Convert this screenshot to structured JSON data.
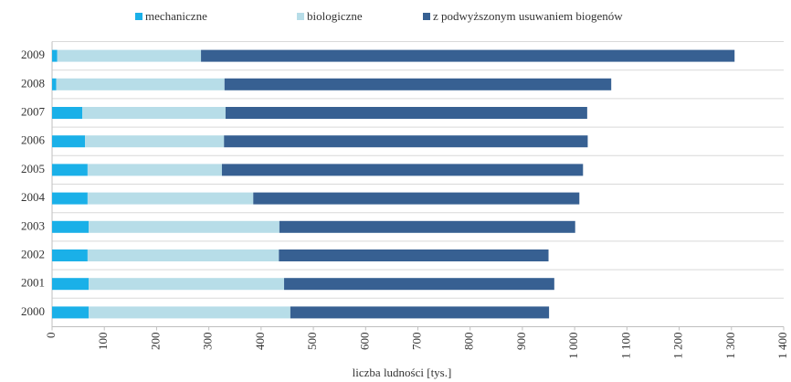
{
  "chart_data": {
    "type": "stacked-bar-horizontal",
    "categories": [
      "2000",
      "2001",
      "2002",
      "2003",
      "2004",
      "2005",
      "2006",
      "2007",
      "2008",
      "2009"
    ],
    "series": [
      {
        "name": "mechaniczne",
        "color": "#1ab0e8",
        "values": [
          70,
          70,
          68,
          70,
          68,
          68,
          63,
          58,
          8,
          10
        ]
      },
      {
        "name": "biologiczne",
        "color": "#b7dde8",
        "values": [
          386,
          374,
          366,
          365,
          317,
          257,
          266,
          274,
          322,
          275
        ]
      },
      {
        "name": "z podwyższonym usuwaniem biogenów",
        "color": "#376092",
        "values": [
          495,
          517,
          516,
          566,
          624,
          691,
          696,
          692,
          740,
          1021
        ]
      }
    ],
    "xlabel": "liczba ludności [tys.]",
    "xlim": [
      0,
      1400
    ],
    "xticks": [
      0,
      100,
      200,
      300,
      400,
      500,
      600,
      700,
      800,
      900,
      {
        "value": 1000,
        "label": "1 000"
      },
      {
        "value": 1100,
        "label": "1 100"
      },
      {
        "value": 1200,
        "label": "1 200"
      },
      {
        "value": 1300,
        "label": "1 300"
      },
      {
        "value": 1400,
        "label": "1 400"
      }
    ],
    "legend": "top"
  }
}
